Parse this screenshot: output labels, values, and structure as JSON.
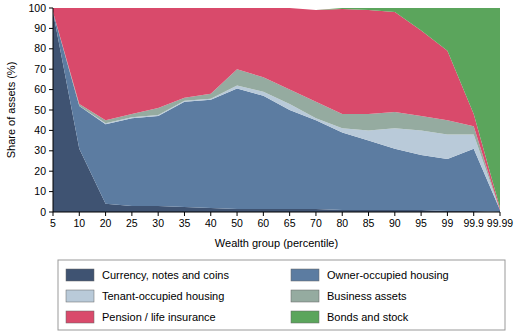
{
  "chart_data": {
    "type": "area",
    "stacked": true,
    "grid": false,
    "legend": "bottom",
    "x_label": "Wealth group (percentile)",
    "y_label": "Share of assets (%)",
    "categories": [
      "5",
      "10",
      "20",
      "25",
      "30",
      "35",
      "40",
      "50",
      "60",
      "65",
      "70",
      "80",
      "85",
      "90",
      "95",
      "99",
      "99.9",
      "99.99"
    ],
    "ylim": [
      0,
      100
    ],
    "yticks": [
      0,
      10,
      20,
      30,
      40,
      50,
      60,
      70,
      80,
      90,
      100
    ],
    "series": [
      {
        "name": "Currency, notes and coins",
        "color": "#3f5372",
        "values": [
          98,
          31,
          4,
          3,
          3,
          2.5,
          2,
          1.5,
          1.5,
          1.5,
          1.5,
          1,
          1,
          1,
          1,
          0.5,
          0.5,
          0
        ]
      },
      {
        "name": "Owner-occupied housing",
        "color": "#5c7ca1",
        "values": [
          0,
          21,
          39,
          43,
          44,
          51.5,
          53,
          59,
          55.5,
          48.5,
          43.5,
          38,
          34,
          30,
          27,
          25.5,
          30.5,
          1
        ]
      },
      {
        "name": "Tenant-occupied housing",
        "color": "#b9cad9",
        "values": [
          0,
          0,
          0.5,
          0.5,
          0.5,
          0.5,
          0.5,
          1.5,
          2,
          3,
          1,
          2,
          5,
          10,
          12,
          12,
          7,
          0
        ]
      },
      {
        "name": "Business assets",
        "color": "#95aba0",
        "values": [
          0,
          1,
          1.5,
          1.5,
          3.5,
          1.5,
          2.5,
          8,
          7,
          7,
          8,
          7,
          8,
          8,
          7,
          7,
          4,
          0
        ]
      },
      {
        "name": "Pension / life insurance",
        "color": "#d94a6b",
        "values": [
          2,
          47,
          55,
          52,
          49,
          44,
          42,
          30,
          34,
          40,
          45,
          51.5,
          51,
          49,
          42,
          34,
          6,
          1
        ]
      },
      {
        "name": "Bonds and stock",
        "color": "#5ba55c",
        "values": [
          0,
          0,
          0,
          0,
          0,
          0,
          0,
          0,
          0,
          0,
          0,
          0.5,
          1,
          2,
          11,
          21,
          52,
          98
        ]
      }
    ]
  }
}
